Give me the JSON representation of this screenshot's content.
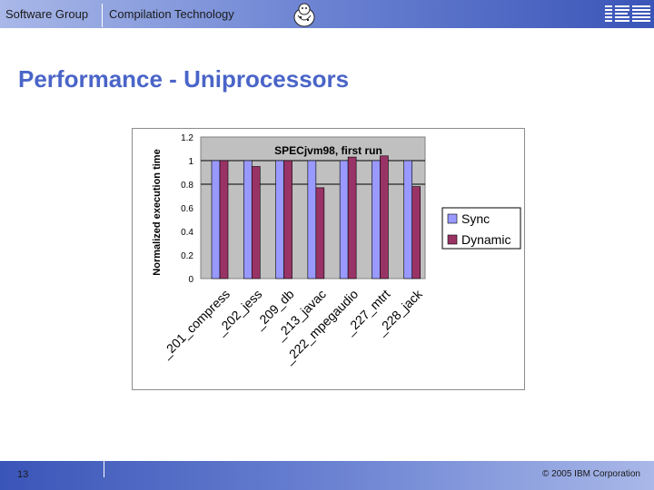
{
  "header": {
    "left_label": "Software Group",
    "right_label": "Compilation Technology",
    "logo_icon": "ibm-logo-icon",
    "mascot_icon": "mascot-icon"
  },
  "slide": {
    "title": "Performance - Uniprocessors"
  },
  "footer": {
    "page_number": "13",
    "copyright": "© 2005 IBM Corporation"
  },
  "colors": {
    "sync": "#9999ff",
    "dynamic": "#993366",
    "plot_bg": "#c0c0c0",
    "accent": "#4a65c8"
  },
  "chart_data": {
    "type": "bar",
    "title": "SPECjvm98, first run",
    "ylabel": "Normalized execution time",
    "xlabel": "",
    "ylim": [
      0,
      1.2
    ],
    "yticks": [
      "0",
      "0.2",
      "0.4",
      "0.6",
      "0.8",
      "1",
      "1.2"
    ],
    "grid": "horizontal at 0.8 and 1",
    "legend_position": "right",
    "categories": [
      "_201_compress",
      "_202_jess",
      "_209_db",
      "_213_javac",
      "_222_mpegaudio",
      "_227_mtrt",
      "_228_jack"
    ],
    "series": [
      {
        "name": "Sync",
        "values": [
          1,
          1,
          1,
          1,
          1,
          1,
          1
        ]
      },
      {
        "name": "Dynamic",
        "values": [
          1.0,
          0.95,
          1.0,
          0.77,
          1.03,
          1.04,
          0.78
        ]
      }
    ]
  }
}
